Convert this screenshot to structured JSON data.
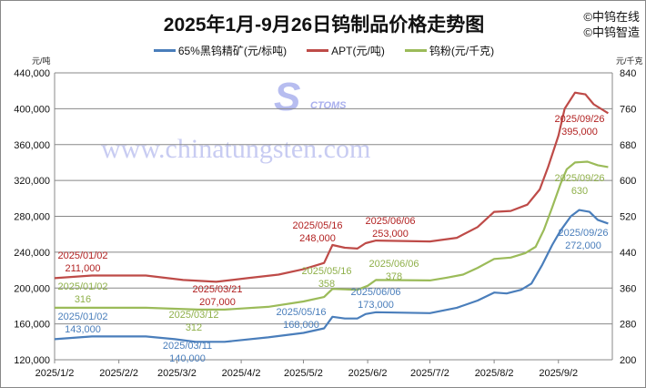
{
  "brand": {
    "line1": "©中钨在线",
    "line2": "©中钨智造"
  },
  "watermark": {
    "logo_text": "CTOMS",
    "url": "www.chinatungsten.com"
  },
  "chart_data": {
    "type": "line",
    "title": "2025年1月-9月26日钨制品价格走势图",
    "legend_placement": "top",
    "grid": "horizontal",
    "y_left": {
      "unit": "元/吨",
      "range": [
        120000,
        440000
      ],
      "ticks": [
        "120,000",
        "160,000",
        "200,000",
        "240,000",
        "280,000",
        "320,000",
        "360,000",
        "400,000",
        "440,000"
      ]
    },
    "y_right": {
      "unit": "元/千克",
      "range": [
        200,
        840
      ],
      "ticks": [
        "200",
        "280",
        "360",
        "440",
        "520",
        "600",
        "680",
        "760",
        "840"
      ]
    },
    "x": {
      "range": [
        "2025-01-02",
        "2025-09-28"
      ],
      "ticks": [
        [
          "2025-01-02",
          "2025/1/2"
        ],
        [
          "2025-02-02",
          "2025/2/2"
        ],
        [
          "2025-03-02",
          "2025/3/2"
        ],
        [
          "2025-04-02",
          "2025/4/2"
        ],
        [
          "2025-05-02",
          "2025/5/2"
        ],
        [
          "2025-06-02",
          "2025/6/2"
        ],
        [
          "2025-07-02",
          "2025/7/2"
        ],
        [
          "2025-08-02",
          "2025/8/2"
        ],
        [
          "2025-09-02",
          "2025/9/2"
        ]
      ]
    },
    "series": [
      {
        "name": "65%黑钨精矿(元/标吨)",
        "axis": "left",
        "color": "#4a7ebb",
        "points": [
          [
            "2025-01-02",
            143000
          ],
          [
            "2025-01-20",
            146000
          ],
          [
            "2025-02-15",
            146000
          ],
          [
            "2025-03-01",
            143000
          ],
          [
            "2025-03-11",
            140000
          ],
          [
            "2025-03-25",
            140000
          ],
          [
            "2025-04-15",
            145000
          ],
          [
            "2025-05-02",
            150000
          ],
          [
            "2025-05-12",
            155000
          ],
          [
            "2025-05-16",
            168000
          ],
          [
            "2025-05-22",
            166000
          ],
          [
            "2025-05-28",
            166000
          ],
          [
            "2025-06-01",
            171000
          ],
          [
            "2025-06-06",
            173000
          ],
          [
            "2025-07-02",
            172000
          ],
          [
            "2025-07-15",
            178000
          ],
          [
            "2025-07-25",
            186000
          ],
          [
            "2025-08-02",
            195000
          ],
          [
            "2025-08-08",
            194000
          ],
          [
            "2025-08-15",
            198000
          ],
          [
            "2025-08-20",
            205000
          ],
          [
            "2025-08-25",
            225000
          ],
          [
            "2025-08-30",
            248000
          ],
          [
            "2025-09-03",
            264000
          ],
          [
            "2025-09-08",
            280000
          ],
          [
            "2025-09-12",
            287000
          ],
          [
            "2025-09-17",
            285000
          ],
          [
            "2025-09-21",
            276000
          ],
          [
            "2025-09-26",
            272000
          ]
        ]
      },
      {
        "name": "APT(元/吨)",
        "axis": "left",
        "color": "#be4b48",
        "points": [
          [
            "2025-01-02",
            211000
          ],
          [
            "2025-01-20",
            214000
          ],
          [
            "2025-02-15",
            214000
          ],
          [
            "2025-03-05",
            209000
          ],
          [
            "2025-03-21",
            207000
          ],
          [
            "2025-04-05",
            211000
          ],
          [
            "2025-04-20",
            215000
          ],
          [
            "2025-05-02",
            221000
          ],
          [
            "2025-05-12",
            228000
          ],
          [
            "2025-05-16",
            248000
          ],
          [
            "2025-05-22",
            245000
          ],
          [
            "2025-05-28",
            244000
          ],
          [
            "2025-06-01",
            250000
          ],
          [
            "2025-06-06",
            253000
          ],
          [
            "2025-07-02",
            252000
          ],
          [
            "2025-07-15",
            256000
          ],
          [
            "2025-07-25",
            268000
          ],
          [
            "2025-08-02",
            285000
          ],
          [
            "2025-08-10",
            286000
          ],
          [
            "2025-08-18",
            293000
          ],
          [
            "2025-08-24",
            310000
          ],
          [
            "2025-08-28",
            335000
          ],
          [
            "2025-09-02",
            370000
          ],
          [
            "2025-09-05",
            400000
          ],
          [
            "2025-09-10",
            418000
          ],
          [
            "2025-09-15",
            416000
          ],
          [
            "2025-09-19",
            405000
          ],
          [
            "2025-09-26",
            395000
          ]
        ]
      },
      {
        "name": "钨粉(元/千克)",
        "axis": "right",
        "color": "#9bbb59",
        "points": [
          [
            "2025-01-02",
            316
          ],
          [
            "2025-02-15",
            316
          ],
          [
            "2025-03-12",
            312
          ],
          [
            "2025-03-25",
            312
          ],
          [
            "2025-04-15",
            318
          ],
          [
            "2025-05-02",
            330
          ],
          [
            "2025-05-12",
            340
          ],
          [
            "2025-05-16",
            358
          ],
          [
            "2025-05-28",
            356
          ],
          [
            "2025-06-02",
            365
          ],
          [
            "2025-06-06",
            378
          ],
          [
            "2025-07-02",
            377
          ],
          [
            "2025-07-10",
            383
          ],
          [
            "2025-07-18",
            390
          ],
          [
            "2025-07-25",
            405
          ],
          [
            "2025-08-02",
            425
          ],
          [
            "2025-08-10",
            428
          ],
          [
            "2025-08-17",
            438
          ],
          [
            "2025-08-22",
            452
          ],
          [
            "2025-08-26",
            490
          ],
          [
            "2025-08-30",
            540
          ],
          [
            "2025-09-03",
            592
          ],
          [
            "2025-09-06",
            625
          ],
          [
            "2025-09-10",
            640
          ],
          [
            "2025-09-16",
            642
          ],
          [
            "2025-09-21",
            634
          ],
          [
            "2025-09-26",
            630
          ]
        ]
      }
    ],
    "annotations": [
      {
        "series": 0,
        "date": "2025/01/02",
        "value": "143,000"
      },
      {
        "series": 0,
        "date": "2025/03/11",
        "value": "140,000"
      },
      {
        "series": 0,
        "date": "2025/05/16",
        "value": "168,000"
      },
      {
        "series": 0,
        "date": "2025/06/06",
        "value": "173,000"
      },
      {
        "series": 0,
        "date": "2025/09/26",
        "value": "272,000"
      },
      {
        "series": 1,
        "date": "2025/01/02",
        "value": "211,000"
      },
      {
        "series": 1,
        "date": "2025/03/21",
        "value": "207,000"
      },
      {
        "series": 1,
        "date": "2025/05/16",
        "value": "248,000"
      },
      {
        "series": 1,
        "date": "2025/06/06",
        "value": "253,000"
      },
      {
        "series": 1,
        "date": "2025/09/26",
        "value": "395,000"
      },
      {
        "series": 2,
        "date": "2025/01/02",
        "value": "316"
      },
      {
        "series": 2,
        "date": "2025/03/12",
        "value": "312"
      },
      {
        "series": 2,
        "date": "2025/05/16",
        "value": "358"
      },
      {
        "series": 2,
        "date": "2025/06/06",
        "value": "378"
      },
      {
        "series": 2,
        "date": "2025/09/26",
        "value": "630"
      }
    ]
  }
}
